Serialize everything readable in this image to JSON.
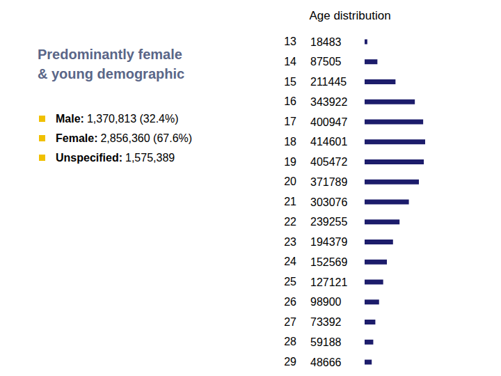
{
  "chart_data": {
    "type": "bar",
    "orientation": "horizontal",
    "title": "Age distribution",
    "categories": [
      "13",
      "14",
      "15",
      "16",
      "17",
      "18",
      "19",
      "20",
      "21",
      "22",
      "23",
      "24",
      "25",
      "26",
      "27",
      "28",
      "29"
    ],
    "values": [
      18483,
      87505,
      211445,
      343922,
      400947,
      414601,
      405472,
      371789,
      303076,
      239255,
      194379,
      152569,
      127121,
      98900,
      73392,
      59188,
      48666
    ],
    "color": "#1c1c6b",
    "data_labels": true,
    "tick_labels": "y",
    "annotations": {
      "heading": [
        "Predominantly female",
        "& young demographic"
      ],
      "items": [
        {
          "label": "Male:",
          "text": "1,370,813 (32.4%)"
        },
        {
          "label": "Female:",
          "text": "2,856,360 (67.6%)"
        },
        {
          "label": "Unspecified:",
          "text": "1,575,389"
        }
      ]
    }
  }
}
